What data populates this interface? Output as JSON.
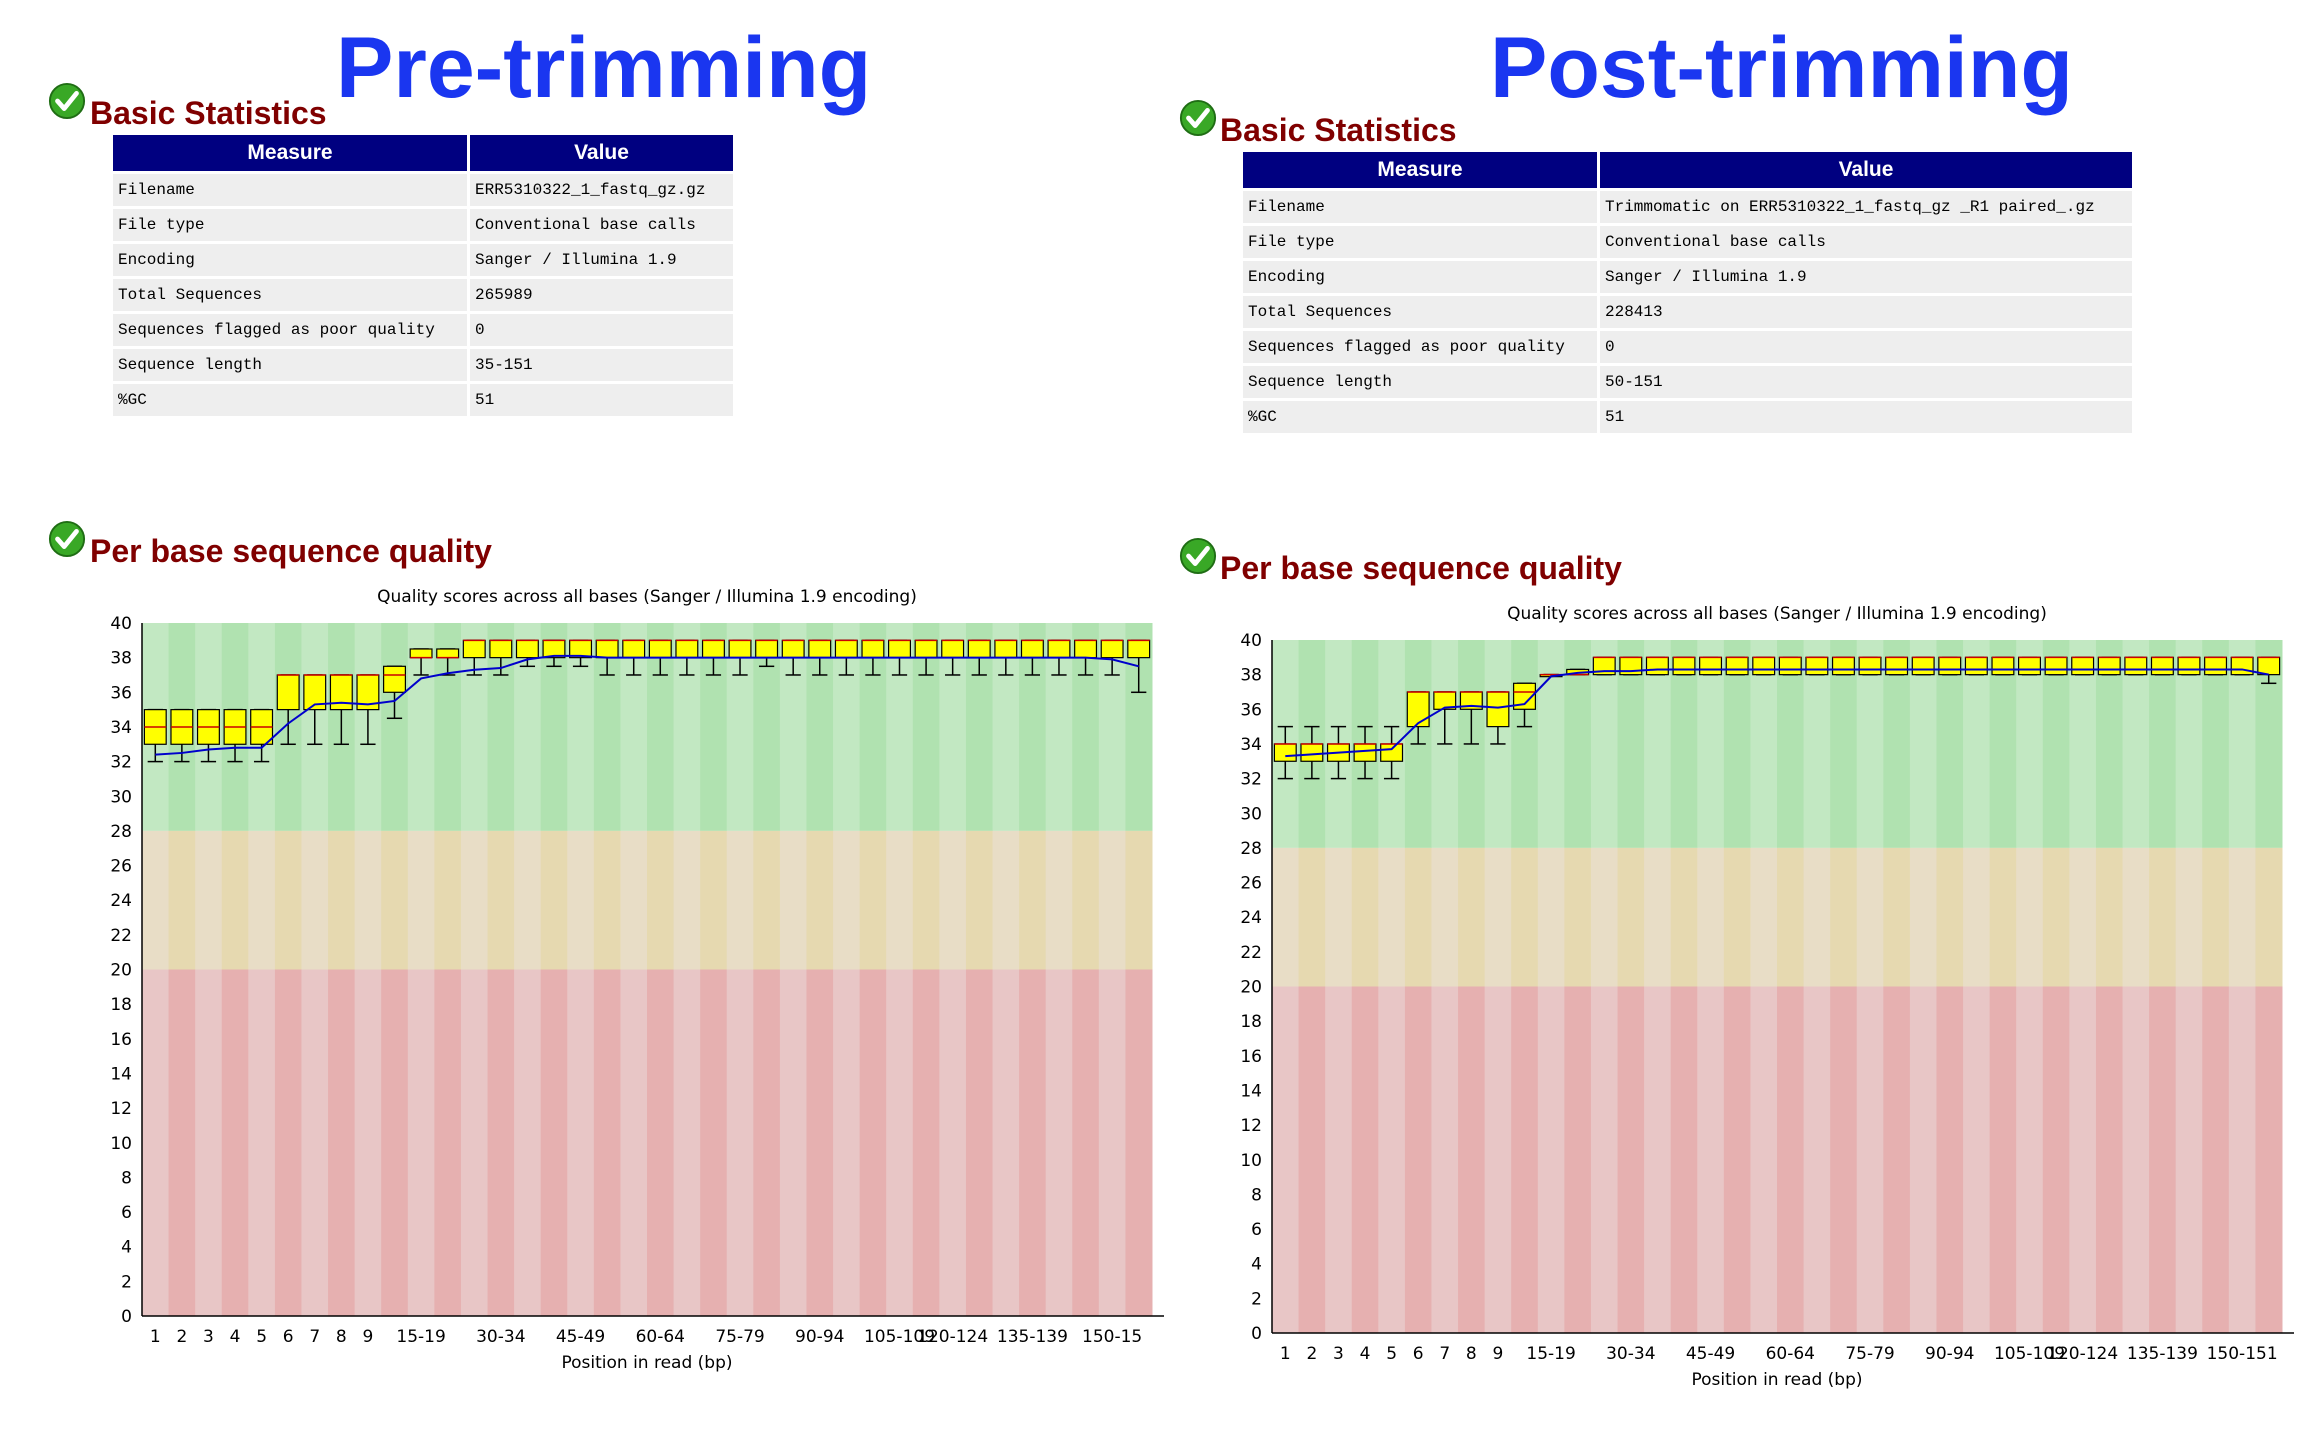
{
  "panels": [
    {
      "title": "Pre-trimming",
      "basic_statistics": {
        "heading": "Basic Statistics",
        "columns": [
          "Measure",
          "Value"
        ],
        "rows": [
          [
            "Filename",
            "ERR5310322_1_fastq_gz.gz"
          ],
          [
            "File type",
            "Conventional base calls"
          ],
          [
            "Encoding",
            "Sanger / Illumina 1.9"
          ],
          [
            "Total Sequences",
            "265989"
          ],
          [
            "Sequences flagged as poor quality",
            "0"
          ],
          [
            "Sequence length",
            "35-151"
          ],
          [
            "%GC",
            "51"
          ]
        ]
      },
      "quality_heading": "Per base sequence quality"
    },
    {
      "title": "Post-trimming",
      "basic_statistics": {
        "heading": "Basic Statistics",
        "columns": [
          "Measure",
          "Value"
        ],
        "rows": [
          [
            "Filename",
            "Trimmomatic on ERR5310322_1_fastq_gz _R1 paired_.gz"
          ],
          [
            "File type",
            "Conventional base calls"
          ],
          [
            "Encoding",
            "Sanger / Illumina 1.9"
          ],
          [
            "Total Sequences",
            "228413"
          ],
          [
            "Sequences flagged as poor quality",
            "0"
          ],
          [
            "Sequence length",
            "50-151"
          ],
          [
            "%GC",
            "51"
          ]
        ]
      },
      "quality_heading": "Per base sequence quality"
    }
  ],
  "colors": {
    "title": "#1a36f0",
    "heading": "#800000",
    "table_header_bg": "#000080",
    "table_cell_bg": "#eeeeee",
    "box_fill": "#ffff00",
    "mean_line": "#0000cc",
    "zone_good": [
      "#c2e8c2",
      "#b0e2b0"
    ],
    "zone_ok": [
      "#e8ddc6",
      "#e6d9b0"
    ],
    "zone_bad": [
      "#e8c6c6",
      "#e6b0b0"
    ]
  },
  "chart_data": [
    {
      "type": "box",
      "title": "Quality scores across all bases (Sanger / Illumina 1.9 encoding)",
      "xlabel": "Position in read (bp)",
      "ylabel": "",
      "ylim": [
        0,
        40
      ],
      "yticks": [
        0,
        2,
        4,
        6,
        8,
        10,
        12,
        14,
        16,
        18,
        20,
        22,
        24,
        26,
        28,
        30,
        32,
        34,
        36,
        38,
        40
      ],
      "zones": [
        {
          "from": 28,
          "to": 40,
          "label": "good"
        },
        {
          "from": 20,
          "to": 28,
          "label": "reasonable"
        },
        {
          "from": 0,
          "to": 20,
          "label": "poor"
        }
      ],
      "categories": [
        "1",
        "2",
        "3",
        "4",
        "5",
        "6",
        "7",
        "8",
        "9",
        "10-14",
        "15-19",
        "20-24",
        "25-29",
        "30-34",
        "35-39",
        "40-44",
        "45-49",
        "50-54",
        "55-59",
        "60-64",
        "65-69",
        "70-74",
        "75-79",
        "80-84",
        "85-89",
        "90-94",
        "95-99",
        "100-104",
        "105-109",
        "110-114",
        "115-119",
        "120-124",
        "125-129",
        "130-134",
        "135-139",
        "140-144",
        "145-149",
        "150-15"
      ],
      "tick_labels": [
        "1",
        "2",
        "3",
        "4",
        "5",
        "6",
        "7",
        "8",
        "9",
        "",
        "15-19",
        "",
        "",
        "30-34",
        "",
        "",
        "45-49",
        "",
        "",
        "60-64",
        "",
        "",
        "75-79",
        "",
        "",
        "90-94",
        "",
        "",
        "105-109",
        "",
        "120-124",
        "",
        "",
        "135-139",
        "",
        "",
        "150-15",
        ""
      ],
      "q1": [
        33,
        33,
        33,
        33,
        33,
        35,
        35,
        35,
        35,
        36,
        38,
        38,
        38,
        38,
        38,
        38,
        38,
        38,
        38,
        38,
        38,
        38,
        38,
        38,
        38,
        38,
        38,
        38,
        38,
        38,
        38,
        38,
        38,
        38,
        38,
        38,
        38,
        38
      ],
      "median": [
        34,
        34,
        34,
        34,
        34,
        37,
        37,
        37,
        37,
        37,
        38,
        38,
        39,
        39,
        39,
        39,
        39,
        39,
        39,
        39,
        39,
        39,
        39,
        39,
        39,
        39,
        39,
        39,
        39,
        39,
        39,
        39,
        39,
        39,
        39,
        39,
        39,
        39
      ],
      "q3": [
        35,
        35,
        35,
        35,
        35,
        37,
        37,
        37,
        37,
        37.5,
        38.5,
        38.5,
        39,
        39,
        39,
        39,
        39,
        39,
        39,
        39,
        39,
        39,
        39,
        39,
        39,
        39,
        39,
        39,
        39,
        39,
        39,
        39,
        39,
        39,
        39,
        39,
        39,
        39
      ],
      "lower": [
        32,
        32,
        32,
        32,
        32,
        33,
        33,
        33,
        33,
        34.5,
        37,
        37,
        37,
        37,
        37.5,
        37.5,
        37.5,
        37,
        37,
        37,
        37,
        37,
        37,
        37.5,
        37,
        37,
        37,
        37,
        37,
        37,
        37,
        37,
        37,
        37,
        37,
        37,
        37,
        36
      ],
      "upper": [
        35,
        35,
        35,
        35,
        35,
        37,
        37,
        37,
        37,
        37.5,
        38.5,
        38.5,
        39,
        39,
        39,
        39,
        39,
        39,
        39,
        39,
        39,
        39,
        39,
        39,
        39,
        39,
        39,
        39,
        39,
        39,
        39,
        39,
        39,
        39,
        39,
        39,
        39,
        39
      ],
      "mean": [
        32.4,
        32.5,
        32.7,
        32.8,
        32.8,
        34.2,
        35.3,
        35.4,
        35.3,
        35.5,
        36.8,
        37.1,
        37.3,
        37.4,
        37.9,
        38.1,
        38.1,
        38.0,
        38.0,
        38.0,
        38.0,
        38.0,
        38.0,
        38.0,
        38.0,
        38.0,
        38.0,
        38.0,
        38.0,
        38.0,
        38.0,
        38.0,
        38.0,
        38.0,
        38.0,
        38.0,
        37.9,
        37.5
      ]
    },
    {
      "type": "box",
      "title": "Quality scores across all bases (Sanger / Illumina 1.9 encoding)",
      "xlabel": "Position in read (bp)",
      "ylabel": "",
      "ylim": [
        0,
        40
      ],
      "yticks": [
        0,
        2,
        4,
        6,
        8,
        10,
        12,
        14,
        16,
        18,
        20,
        22,
        24,
        26,
        28,
        30,
        32,
        34,
        36,
        38,
        40
      ],
      "zones": [
        {
          "from": 28,
          "to": 40,
          "label": "good"
        },
        {
          "from": 20,
          "to": 28,
          "label": "reasonable"
        },
        {
          "from": 0,
          "to": 20,
          "label": "poor"
        }
      ],
      "categories": [
        "1",
        "2",
        "3",
        "4",
        "5",
        "6",
        "7",
        "8",
        "9",
        "10-14",
        "15-19",
        "20-24",
        "25-29",
        "30-34",
        "35-39",
        "40-44",
        "45-49",
        "50-54",
        "55-59",
        "60-64",
        "65-69",
        "70-74",
        "75-79",
        "80-84",
        "85-89",
        "90-94",
        "95-99",
        "100-104",
        "105-109",
        "110-114",
        "115-119",
        "120-124",
        "125-129",
        "130-134",
        "135-139",
        "140-144",
        "145-149",
        "150-151"
      ],
      "tick_labels": [
        "1",
        "2",
        "3",
        "4",
        "5",
        "6",
        "7",
        "8",
        "9",
        "",
        "15-19",
        "",
        "",
        "30-34",
        "",
        "",
        "45-49",
        "",
        "",
        "60-64",
        "",
        "",
        "75-79",
        "",
        "",
        "90-94",
        "",
        "",
        "105-109",
        "",
        "120-124",
        "",
        "",
        "135-139",
        "",
        "",
        "150-151",
        ""
      ],
      "q1": [
        33,
        33,
        33,
        33,
        33,
        35,
        36,
        36,
        35,
        36,
        38,
        38,
        38,
        38,
        38,
        38,
        38,
        38,
        38,
        38,
        38,
        38,
        38,
        38,
        38,
        38,
        38,
        38,
        38,
        38,
        38,
        38,
        38,
        38,
        38,
        38,
        38,
        38
      ],
      "median": [
        34,
        34,
        34,
        34,
        34,
        37,
        37,
        37,
        37,
        37,
        38,
        38,
        39,
        39,
        39,
        39,
        39,
        39,
        39,
        39,
        39,
        39,
        39,
        39,
        39,
        39,
        39,
        39,
        39,
        39,
        39,
        39,
        39,
        39,
        39,
        39,
        39,
        39
      ],
      "q3": [
        34,
        34,
        34,
        34,
        34,
        37,
        37,
        37,
        37,
        37.5,
        38,
        38.3,
        39,
        39,
        39,
        39,
        39,
        39,
        39,
        39,
        39,
        39,
        39,
        39,
        39,
        39,
        39,
        39,
        39,
        39,
        39,
        39,
        39,
        39,
        39,
        39,
        39,
        39
      ],
      "lower": [
        32,
        32,
        32,
        32,
        32,
        34,
        34,
        34,
        34,
        35,
        38,
        38,
        38,
        38,
        38,
        38,
        38,
        38,
        38,
        38,
        38,
        38,
        38,
        38,
        38,
        38,
        38,
        38,
        38,
        38,
        38,
        38,
        38,
        38,
        38,
        38,
        38,
        37.5
      ],
      "upper": [
        35,
        35,
        35,
        35,
        35,
        37,
        37,
        37,
        37,
        37.5,
        38,
        38.3,
        39,
        39,
        39,
        39,
        39,
        39,
        39,
        39,
        39,
        39,
        39,
        39,
        39,
        39,
        39,
        39,
        39,
        39,
        39,
        39,
        39,
        39,
        39,
        39,
        39,
        39
      ],
      "mean": [
        33.3,
        33.4,
        33.5,
        33.6,
        33.7,
        35.2,
        36.1,
        36.2,
        36.1,
        36.3,
        37.9,
        38.1,
        38.2,
        38.2,
        38.3,
        38.3,
        38.3,
        38.3,
        38.3,
        38.3,
        38.3,
        38.3,
        38.3,
        38.3,
        38.3,
        38.3,
        38.3,
        38.3,
        38.3,
        38.3,
        38.3,
        38.3,
        38.3,
        38.3,
        38.3,
        38.3,
        38.3,
        38.0
      ]
    }
  ]
}
